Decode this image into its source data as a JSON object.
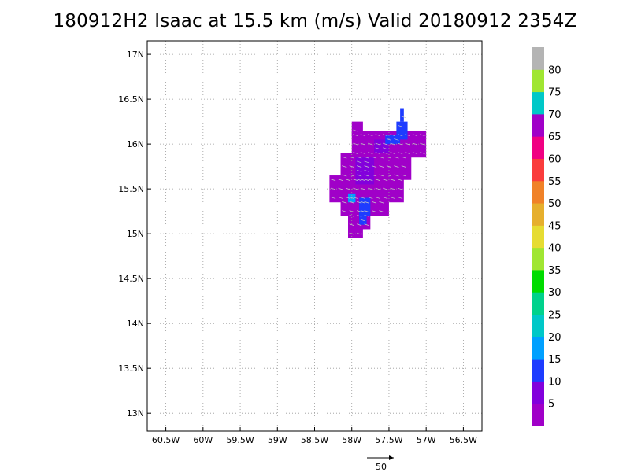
{
  "title": "180912H2 Isaac at 15.5 km (m/s) Valid 20180912  2354Z",
  "map": {
    "lon_range": [
      -60.75,
      -56.25
    ],
    "lat_range": [
      12.8,
      17.15
    ],
    "lat_ticks": [
      {
        "value": 17.0,
        "label": "17N"
      },
      {
        "value": 16.5,
        "label": "16.5N"
      },
      {
        "value": 16.0,
        "label": "16N"
      },
      {
        "value": 15.5,
        "label": "15.5N"
      },
      {
        "value": 15.0,
        "label": "15N"
      },
      {
        "value": 14.5,
        "label": "14.5N"
      },
      {
        "value": 14.0,
        "label": "14N"
      },
      {
        "value": 13.5,
        "label": "13.5N"
      },
      {
        "value": 13.0,
        "label": "13N"
      }
    ],
    "lon_ticks": [
      {
        "value": -60.5,
        "label": "60.5W"
      },
      {
        "value": -60.0,
        "label": "60W"
      },
      {
        "value": -59.5,
        "label": "59.5W"
      },
      {
        "value": -59.0,
        "label": "59W"
      },
      {
        "value": -58.5,
        "label": "58.5W"
      },
      {
        "value": -58.0,
        "label": "58W"
      },
      {
        "value": -57.5,
        "label": "57.5W"
      },
      {
        "value": -57.0,
        "label": "57W"
      },
      {
        "value": -56.5,
        "label": "56.5W"
      }
    ],
    "grid": "dotted",
    "cell_size_deg": 0.1,
    "wind_field": [
      {
        "lat_min": 16.1,
        "lat_max": 16.25,
        "lon_min": -58.0,
        "lon_max": -57.85,
        "speed": 4
      },
      {
        "lat_min": 15.85,
        "lat_max": 16.15,
        "lon_min": -58.0,
        "lon_max": -57.0,
        "speed": 4
      },
      {
        "lat_min": 15.6,
        "lat_max": 15.9,
        "lon_min": -58.15,
        "lon_max": -57.2,
        "speed": 4
      },
      {
        "lat_min": 15.35,
        "lat_max": 15.65,
        "lon_min": -58.3,
        "lon_max": -57.3,
        "speed": 4
      },
      {
        "lat_min": 15.2,
        "lat_max": 15.4,
        "lon_min": -58.15,
        "lon_max": -57.5,
        "speed": 4
      },
      {
        "lat_min": 15.05,
        "lat_max": 15.25,
        "lon_min": -58.05,
        "lon_max": -57.75,
        "speed": 4
      },
      {
        "lat_min": 14.95,
        "lat_max": 15.1,
        "lon_min": -58.05,
        "lon_max": -57.85,
        "speed": 4
      },
      {
        "lat_min": 15.55,
        "lat_max": 15.85,
        "lon_min": -57.95,
        "lon_max": -57.7,
        "speed": 6
      },
      {
        "lat_min": 15.9,
        "lat_max": 16.05,
        "lon_min": -57.7,
        "lon_max": -57.5,
        "speed": 6
      },
      {
        "lat_min": 16.0,
        "lat_max": 16.1,
        "lon_min": -57.55,
        "lon_max": -57.35,
        "speed": 12
      },
      {
        "lat_min": 16.05,
        "lat_max": 16.25,
        "lon_min": -57.4,
        "lon_max": -57.25,
        "speed": 13
      },
      {
        "lat_min": 16.25,
        "lat_max": 16.4,
        "lon_min": -57.35,
        "lon_max": -57.3,
        "speed": 14
      },
      {
        "lat_min": 15.2,
        "lat_max": 15.4,
        "lon_min": -57.9,
        "lon_max": -57.75,
        "speed": 13
      },
      {
        "lat_min": 15.1,
        "lat_max": 15.25,
        "lon_min": -57.9,
        "lon_max": -57.8,
        "speed": 12
      },
      {
        "lat_min": 15.35,
        "lat_max": 15.45,
        "lon_min": -58.05,
        "lon_max": -57.95,
        "speed": 18
      }
    ]
  },
  "colorbar": {
    "colors": [
      "#a000c8",
      "#8200dc",
      "#1e3cff",
      "#00a0ff",
      "#00c8c8",
      "#00d28c",
      "#00dc00",
      "#a0e632",
      "#e6dc32",
      "#e6af2d",
      "#f08228",
      "#fa3c3c",
      "#f00082",
      "#a000c8",
      "#00c8c8",
      "#a0e632",
      "#b4b4b4"
    ],
    "labels": [
      "5",
      "10",
      "15",
      "20",
      "25",
      "30",
      "35",
      "40",
      "45",
      "50",
      "55",
      "60",
      "65",
      "70",
      "75",
      "80"
    ]
  },
  "reference_vector": {
    "label": "50"
  }
}
